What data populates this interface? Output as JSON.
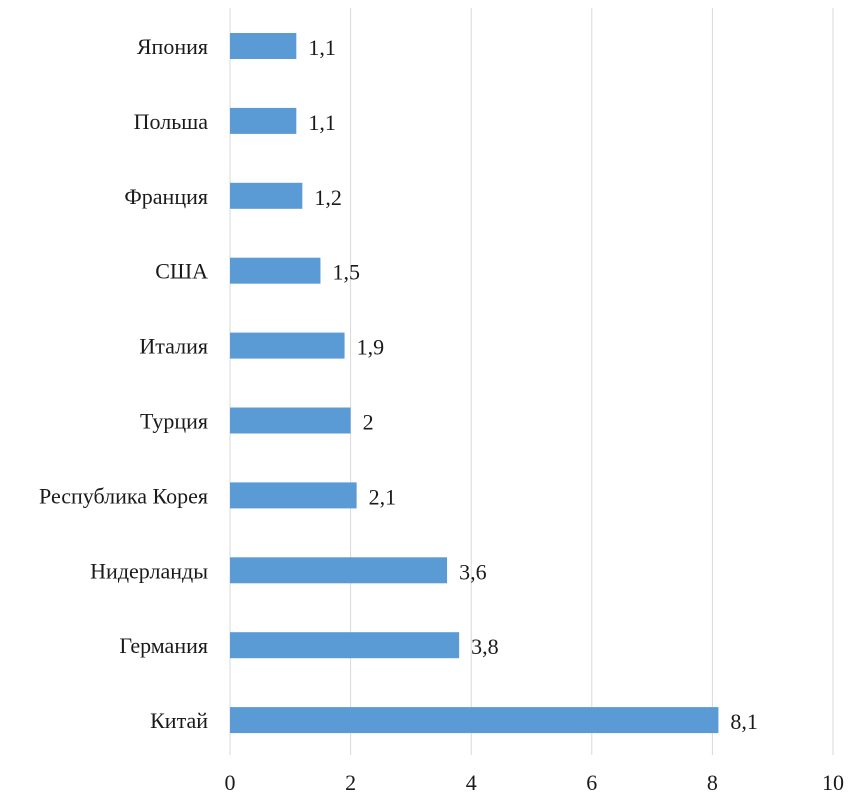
{
  "chart_data": {
    "type": "bar",
    "orientation": "horizontal",
    "categories": [
      "Япония",
      "Польша",
      "Франция",
      "США",
      "Италия",
      "Турция",
      "Республика Корея",
      "Нидерланды",
      "Германия",
      "Китай"
    ],
    "values": [
      1.1,
      1.1,
      1.2,
      1.5,
      1.9,
      2,
      2.1,
      3.6,
      3.8,
      8.1
    ],
    "value_labels": [
      "1,1",
      "1,1",
      "1,2",
      "1,5",
      "1,9",
      "2",
      "2,1",
      "3,6",
      "3,8",
      "8,1"
    ],
    "xlim": [
      0,
      10
    ],
    "xticks": [
      0,
      2,
      4,
      6,
      8,
      10
    ],
    "xtick_labels": [
      "0",
      "2",
      "4",
      "6",
      "8",
      "10"
    ],
    "title": "",
    "xlabel": "",
    "ylabel": "",
    "grid": "vertical",
    "legend": "none",
    "bar_color": "#5b9bd5"
  }
}
